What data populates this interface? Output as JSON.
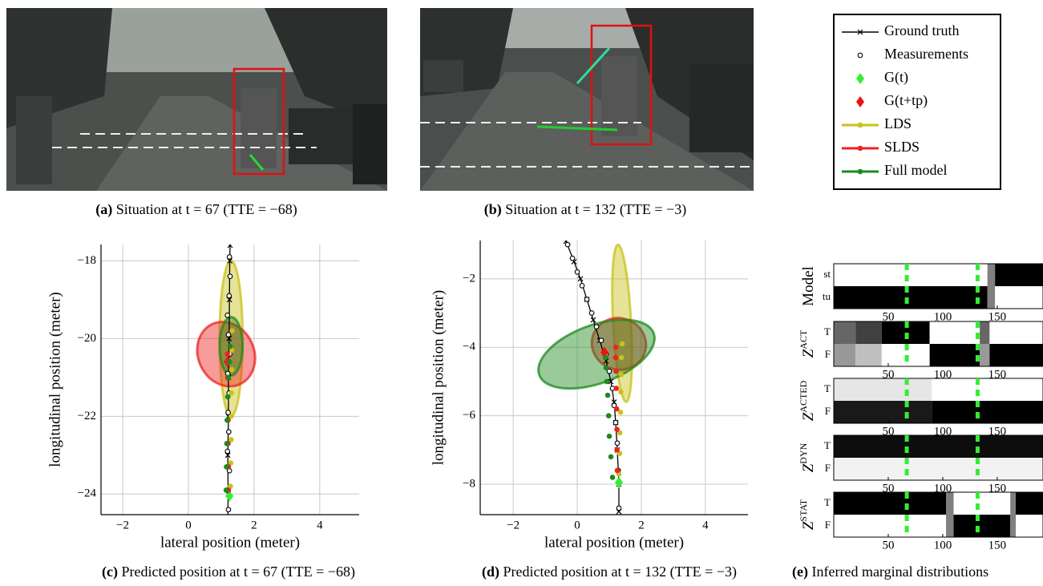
{
  "captions": [
    {
      "tag": "(a)",
      "text": "Situation at t = 67 (TTE = −68)"
    },
    {
      "tag": "(b)",
      "text": "Situation at t = 132 (TTE = −3)"
    },
    {
      "tag": "(c)",
      "text": "Predicted position at t = 67 (TTE = −68)"
    },
    {
      "tag": "(d)",
      "text": "Predicted position at t = 132 (TTE = −3)"
    },
    {
      "tag": "(e)",
      "text": "Inferred marginal distributions"
    }
  ],
  "chart_data": [
    {
      "type": "trajectory",
      "xlabel": "lateral position (meter)",
      "ylabel": "longitudinal position (meter)",
      "xlim": [
        -2.66,
        5.2
      ],
      "ylim": [
        -24.53,
        -17.58
      ],
      "grid": true,
      "xticks": [
        {
          "value": -2,
          "label": "−2"
        },
        0,
        2,
        4
      ],
      "yticks": [
        {
          "value": -24,
          "label": "−24"
        },
        {
          "value": -22,
          "label": "−22"
        },
        {
          "value": -20,
          "label": "−20"
        },
        {
          "value": -18,
          "label": "−18"
        }
      ],
      "series": [
        {
          "name": "Ground truth",
          "color": "#000000",
          "marker": "x",
          "line": true,
          "x": [
            1.2,
            1.21,
            1.2,
            1.22,
            1.22,
            1.24,
            1.25,
            1.26,
            1.27
          ],
          "values": [
            -25,
            -24,
            -23,
            -22,
            -21,
            -20,
            -19,
            -18,
            -17.6
          ]
        },
        {
          "name": "Measurements",
          "color": "#000000",
          "marker": "o",
          "x": [
            1.18,
            1.22,
            1.2,
            1.25,
            1.19,
            1.23,
            1.21,
            1.24,
            1.2,
            1.26,
            1.22,
            1.19,
            1.24,
            1.27,
            1.25,
            1.28
          ],
          "values": [
            -24.9,
            -24.4,
            -23.9,
            -23.4,
            -22.9,
            -22.4,
            -21.9,
            -21.4,
            -20.9,
            -20.4,
            -19.9,
            -19.4,
            -18.9,
            -18.4,
            -17.9,
            -17.5
          ]
        },
        {
          "name": "G(t)",
          "color": "#33ee33",
          "marker": "D",
          "x": [
            1.25
          ],
          "values": [
            -24.05
          ]
        },
        {
          "name": "G(t+tp)",
          "color": "#ee1111",
          "marker": "D",
          "x": [
            1.2
          ],
          "values": [
            -20.6
          ]
        },
        {
          "name": "LDS",
          "color": "#c8c21a",
          "marker": ".",
          "x": [
            1.28,
            1.29,
            1.3,
            1.3,
            1.31,
            1.32,
            1.32,
            1.33
          ],
          "values": [
            -23.8,
            -23.2,
            -22.6,
            -22.0,
            -21.4,
            -20.8,
            -20.3,
            -19.8
          ],
          "ellipse": {
            "cx": 1.3,
            "cy": -20,
            "rx": 0.35,
            "ry": 2.0,
            "angle": 0
          }
        },
        {
          "name": "SLDS",
          "color": "#ee2222",
          "marker": ".",
          "x": [
            1.22,
            1.22,
            1.21,
            1.21,
            1.2,
            1.2,
            1.2,
            1.19
          ],
          "values": [
            -23.9,
            -23.3,
            -22.7,
            -22.1,
            -21.5,
            -21.0,
            -20.6,
            -20.4
          ],
          "ellipse": {
            "cx": 1.15,
            "cy": -20.4,
            "rx": 0.85,
            "ry": 0.85,
            "angle": -25
          }
        },
        {
          "name": "Full model",
          "color": "#1e8a1e",
          "marker": ".",
          "x": [
            1.15,
            1.16,
            1.17,
            1.18,
            1.2,
            1.22,
            1.25,
            1.27
          ],
          "values": [
            -23.9,
            -23.3,
            -22.7,
            -22.1,
            -21.5,
            -21.0,
            -20.6,
            -20.2
          ],
          "ellipse": {
            "cx": 1.3,
            "cy": -20.2,
            "rx": 0.35,
            "ry": 0.75,
            "angle": 0
          }
        }
      ]
    },
    {
      "type": "trajectory",
      "xlabel": "lateral position (meter)",
      "ylabel": "longitudinal position (meter)",
      "xlim": [
        -3.03,
        5.33
      ],
      "ylim": [
        -8.89,
        -0.88
      ],
      "grid": true,
      "xticks": [
        {
          "value": -2,
          "label": "−2"
        },
        0,
        2,
        4
      ],
      "yticks": [
        {
          "value": -8,
          "label": "−8"
        },
        {
          "value": -6,
          "label": "−6"
        },
        {
          "value": -4,
          "label": "−4"
        },
        {
          "value": -2,
          "label": "−2"
        }
      ],
      "series": [
        {
          "color": "#000000",
          "marker": "x",
          "line": true,
          "x": [
            -0.35,
            -0.1,
            0.1,
            0.3,
            0.5,
            0.7,
            0.9,
            1.05,
            1.15,
            1.2,
            1.25,
            1.3,
            1.3
          ],
          "values": [
            -0.9,
            -1.5,
            -2.0,
            -2.6,
            -3.2,
            -3.8,
            -4.4,
            -5.0,
            -5.6,
            -6.2,
            -7.0,
            -8.0,
            -8.8
          ]
        },
        {
          "color": "#000000",
          "marker": "o",
          "x": [
            -0.3,
            -0.15,
            0.0,
            0.15,
            0.3,
            0.45,
            0.6,
            0.75,
            0.9,
            1.0,
            1.1,
            1.15,
            1.2,
            1.25,
            1.28,
            1.3
          ],
          "values": [
            -1.0,
            -1.4,
            -1.8,
            -2.2,
            -2.6,
            -3.0,
            -3.4,
            -3.8,
            -4.2,
            -4.7,
            -5.2,
            -5.7,
            -6.2,
            -6.8,
            -7.6,
            -8.7
          ]
        },
        {
          "color": "#33ee33",
          "marker": "D",
          "x": [
            1.3
          ],
          "values": [
            -7.95
          ]
        },
        {
          "color": "#ee1111",
          "marker": "D",
          "x": [
            0.85
          ],
          "values": [
            -4.15
          ]
        },
        {
          "color": "#c8c21a",
          "marker": ".",
          "x": [
            1.3,
            1.32,
            1.33,
            1.35,
            1.36,
            1.37,
            1.38,
            1.4
          ],
          "values": [
            -7.7,
            -7.1,
            -6.5,
            -5.9,
            -5.3,
            -4.8,
            -4.3,
            -3.9
          ],
          "ellipse": {
            "cx": 1.4,
            "cy": -3.3,
            "rx": 0.28,
            "ry": 2.3,
            "angle": -3
          }
        },
        {
          "color": "#ee2222",
          "marker": ".",
          "x": [
            1.25,
            1.24,
            1.24,
            1.23,
            1.22,
            1.21,
            1.2,
            1.2
          ],
          "values": [
            -7.6,
            -7.0,
            -6.4,
            -5.8,
            -5.2,
            -4.7,
            -4.3,
            -4.0
          ],
          "ellipse": {
            "cx": 1.3,
            "cy": -3.9,
            "rx": 0.85,
            "ry": 0.75,
            "angle": 20
          }
        },
        {
          "color": "#1e8a1e",
          "marker": ".",
          "x": [
            1.1,
            1.05,
            1.0,
            0.98,
            0.95,
            0.92,
            0.9,
            0.88
          ],
          "values": [
            -7.8,
            -7.2,
            -6.6,
            -6.0,
            -5.4,
            -5.0,
            -4.6,
            -4.3
          ],
          "ellipse": {
            "cx": 0.6,
            "cy": -4.2,
            "rx": 1.9,
            "ry": 0.85,
            "angle": -20
          }
        }
      ]
    },
    {
      "type": "heatmap",
      "xlim": [
        0,
        192
      ],
      "xticks": [
        50,
        100,
        150
      ],
      "markers": [
        67,
        132
      ],
      "marker_color": "#33ee33",
      "rows": [
        {
          "label": "Model",
          "states": [
            "st",
            "tu"
          ],
          "segments": [
            [
              0,
              141,
              0
            ],
            [
              141,
              148,
              0.5
            ],
            [
              148,
              192,
              1
            ]
          ]
        },
        {
          "label": "Z",
          "label_sup": "ACT",
          "states": [
            "T",
            "F"
          ],
          "segments": [
            [
              0,
              20,
              0.6
            ],
            [
              20,
              44,
              0.75
            ],
            [
              44,
              88,
              1
            ],
            [
              88,
              134,
              0
            ],
            [
              134,
              143,
              0.6
            ],
            [
              143,
              192,
              0
            ]
          ]
        },
        {
          "label": "Z",
          "label_sup": "ACTED",
          "states": [
            "T",
            "F"
          ],
          "segments": [
            [
              0,
              90,
              0.1
            ],
            [
              90,
              192,
              0
            ]
          ]
        },
        {
          "label": "Z",
          "label_sup": "DYN",
          "states": [
            "T",
            "F"
          ],
          "segments": [
            [
              0,
              192,
              0.95
            ]
          ]
        },
        {
          "label": "Z",
          "label_sup": "STAT",
          "states": [
            "T",
            "F"
          ],
          "segments": [
            [
              0,
              103,
              1
            ],
            [
              103,
              110,
              0.5
            ],
            [
              110,
              162,
              0
            ],
            [
              162,
              167,
              0.5
            ],
            [
              167,
              192,
              1
            ]
          ]
        }
      ]
    }
  ]
}
